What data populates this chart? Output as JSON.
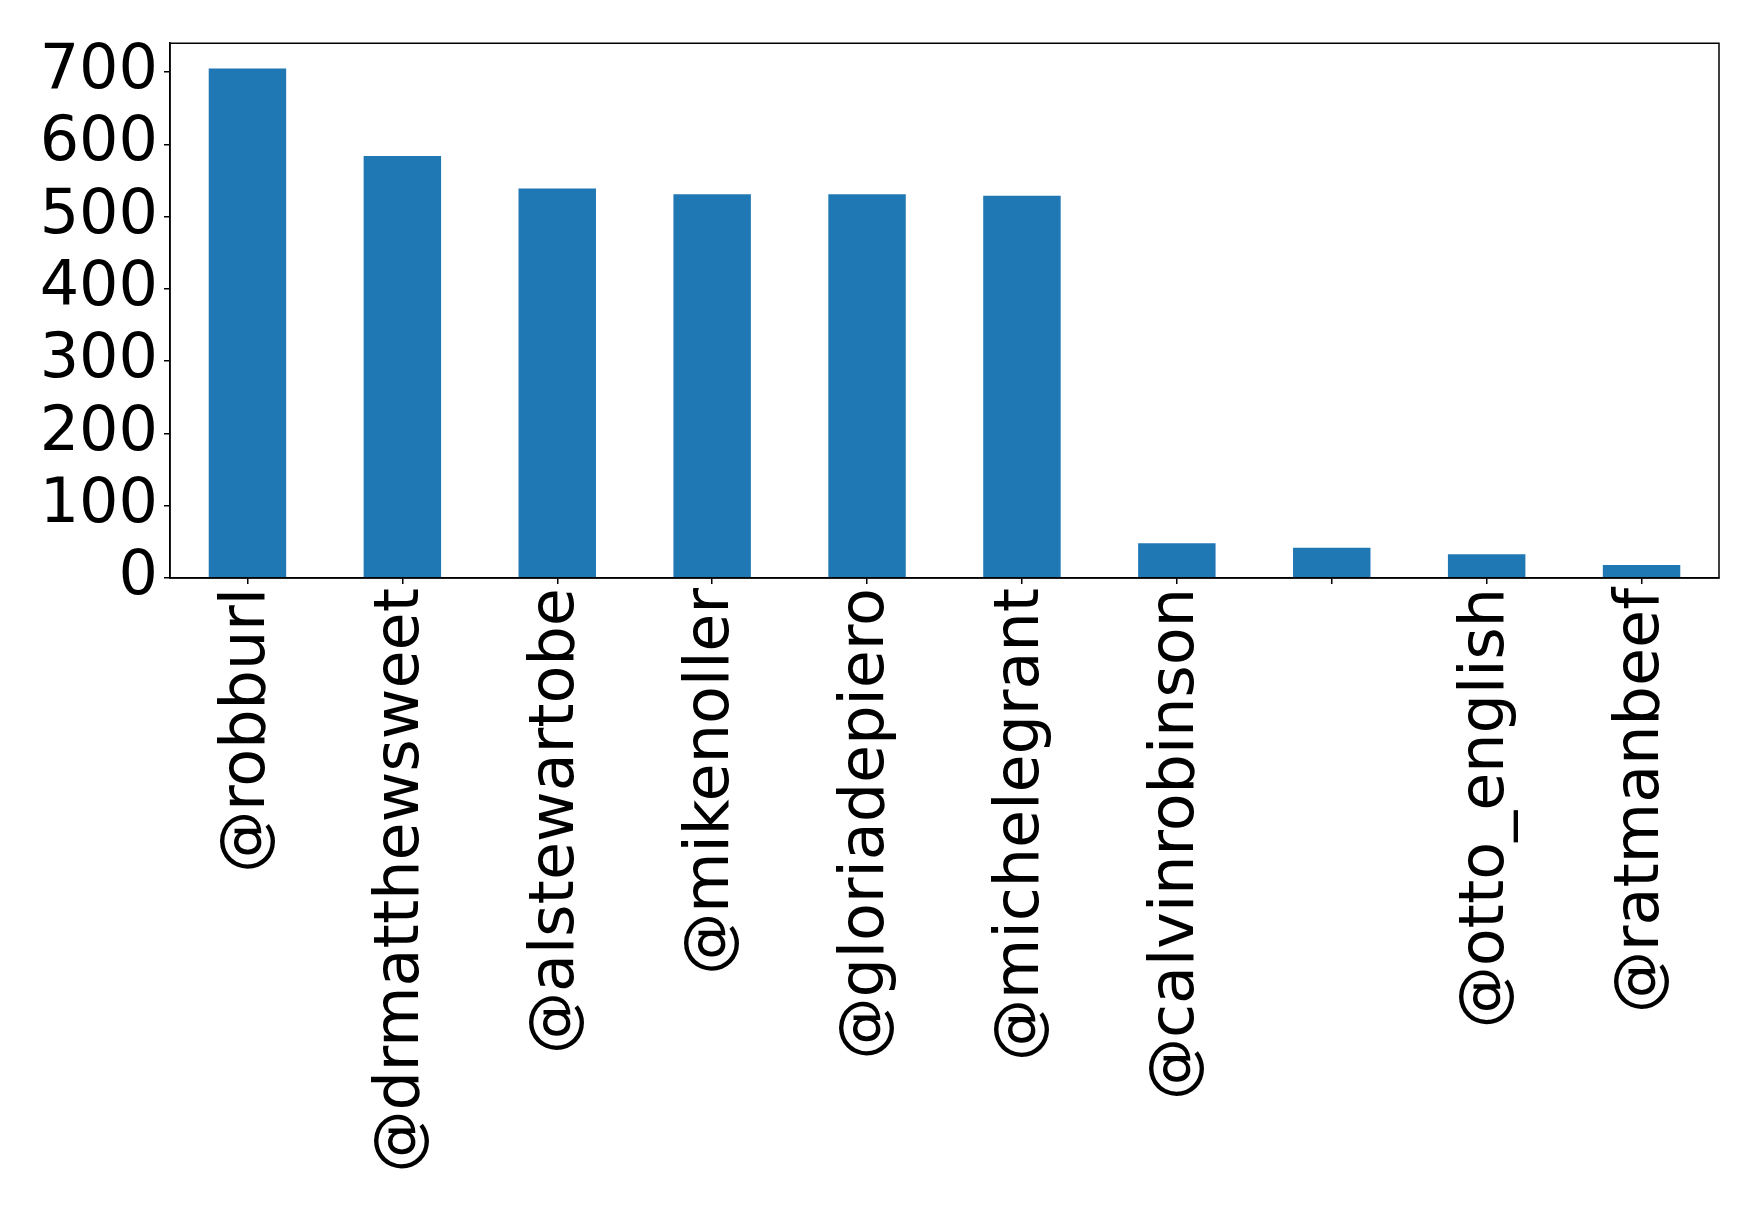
{
  "chart_data": {
    "type": "bar",
    "categories": [
      "@robburl",
      "@drmatthewsweet",
      "@alstewartobe",
      "@mikenoller",
      "@gloriadepiero",
      "@michelegrant",
      "@calvinrobinson",
      null,
      "@otto_english",
      "@ratmanbeef"
    ],
    "values": [
      705,
      584,
      539,
      531,
      531,
      529,
      48,
      42,
      33,
      18
    ],
    "color": "#1f77b4",
    "ylim": [
      0,
      740
    ],
    "yticks": [
      0,
      100,
      200,
      300,
      400,
      500,
      600,
      700
    ],
    "grid": false,
    "legend": false
  }
}
